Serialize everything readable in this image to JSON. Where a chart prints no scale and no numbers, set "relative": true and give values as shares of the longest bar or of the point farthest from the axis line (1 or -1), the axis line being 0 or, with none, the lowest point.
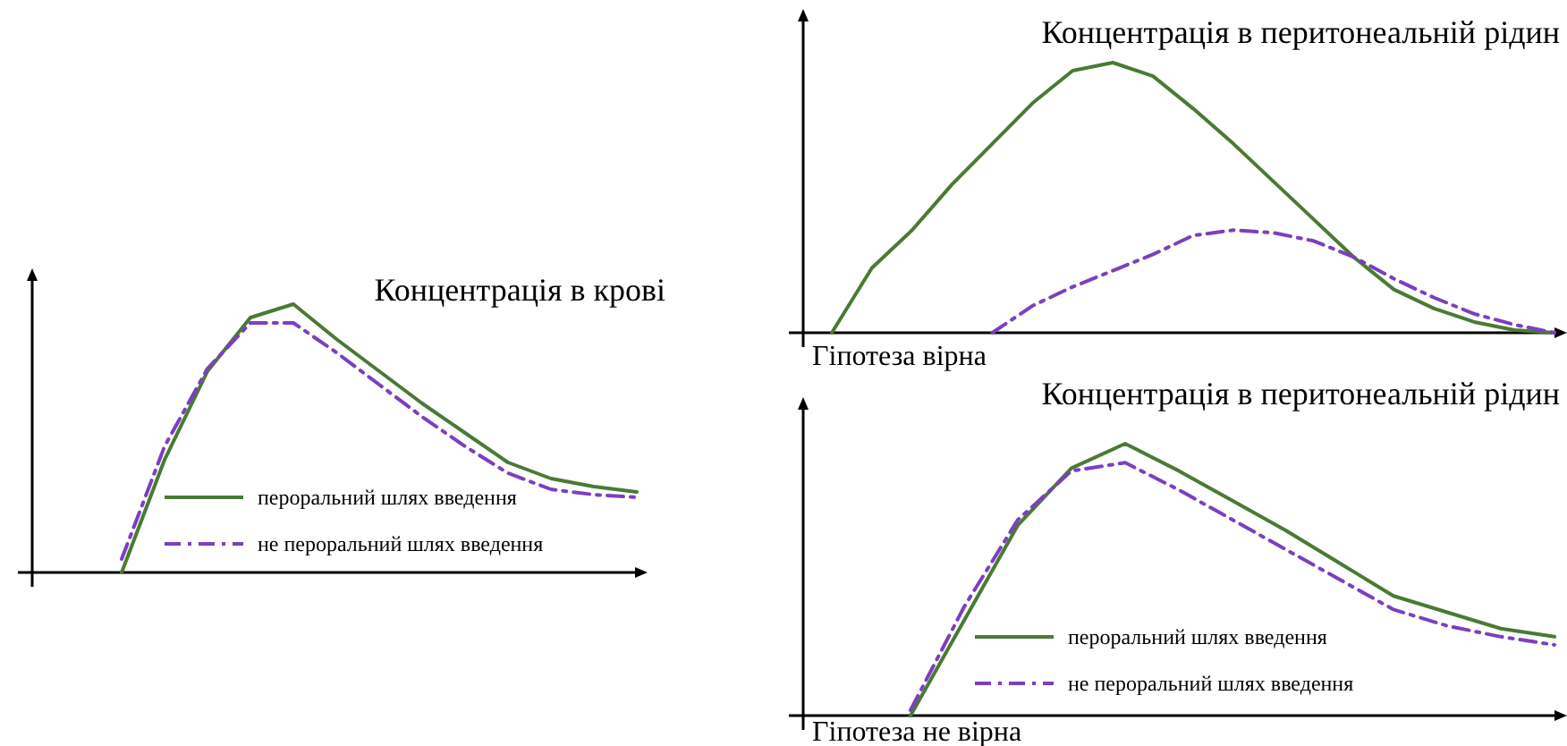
{
  "chart_data": [
    {
      "type": "line",
      "title": "Концентрація в крові",
      "relative": true,
      "legend": "bottom",
      "categories": [
        null,
        null,
        null,
        null,
        null,
        null,
        null,
        null,
        null,
        null,
        null,
        null,
        null
      ],
      "series": [
        {
          "name": "пероральний шлях введення",
          "color": "#4a7a35",
          "line_style": "solid",
          "values": [
            0,
            0.42,
            0.75,
            0.95,
            1,
            0.87,
            0.75,
            0.63,
            0.52,
            0.41,
            0.35,
            0.32,
            0.3
          ]
        },
        {
          "name": "не пероральний шлях введення",
          "color": "#7b3fc0",
          "line_style": "dashed",
          "values": [
            0.05,
            0.47,
            0.76,
            0.93,
            0.93,
            0.82,
            0.7,
            0.58,
            0.47,
            0.37,
            0.31,
            0.29,
            0.28
          ]
        }
      ]
    },
    {
      "type": "line",
      "title": "Концентрація в перитонеальній рідин",
      "xlabel": "Гіпотеза вірна",
      "relative": true,
      "categories": [
        null,
        null,
        null,
        null,
        null,
        null,
        null,
        null,
        null,
        null,
        null,
        null,
        null,
        null,
        null,
        null,
        null,
        null,
        null
      ],
      "series": [
        {
          "color": "#4a7a35",
          "line_style": "solid",
          "values": [
            0,
            0.24,
            0.38,
            0.55,
            0.7,
            0.85,
            0.97,
            1,
            0.95,
            0.83,
            0.7,
            0.56,
            0.42,
            0.28,
            0.16,
            0.09,
            0.04,
            0.01,
            0
          ]
        },
        {
          "color": "#7b3fc0",
          "line_style": "dashed",
          "values": [
            null,
            null,
            null,
            null,
            0,
            0.1,
            0.17,
            0.23,
            0.29,
            0.36,
            0.38,
            0.37,
            0.34,
            0.28,
            0.2,
            0.13,
            0.07,
            0.03,
            0
          ]
        }
      ]
    },
    {
      "type": "line",
      "title": "Концентрація в перитонеальній рідин",
      "xlabel": "Гіпотеза не вірна",
      "relative": true,
      "legend": "bottom",
      "categories": [
        null,
        null,
        null,
        null,
        null,
        null,
        null,
        null,
        null,
        null,
        null,
        null,
        null
      ],
      "series": [
        {
          "name": "пероральний шлях введення",
          "color": "#4a7a35",
          "line_style": "solid",
          "values": [
            0,
            0.35,
            0.7,
            0.91,
            1,
            0.9,
            0.79,
            0.68,
            0.56,
            0.44,
            0.38,
            0.32,
            0.29
          ]
        },
        {
          "name": "не пероральний шлях введення",
          "color": "#7b3fc0",
          "line_style": "dashed",
          "values": [
            0.02,
            0.4,
            0.72,
            0.9,
            0.93,
            0.83,
            0.72,
            0.61,
            0.5,
            0.39,
            0.33,
            0.29,
            0.26
          ]
        }
      ]
    }
  ]
}
